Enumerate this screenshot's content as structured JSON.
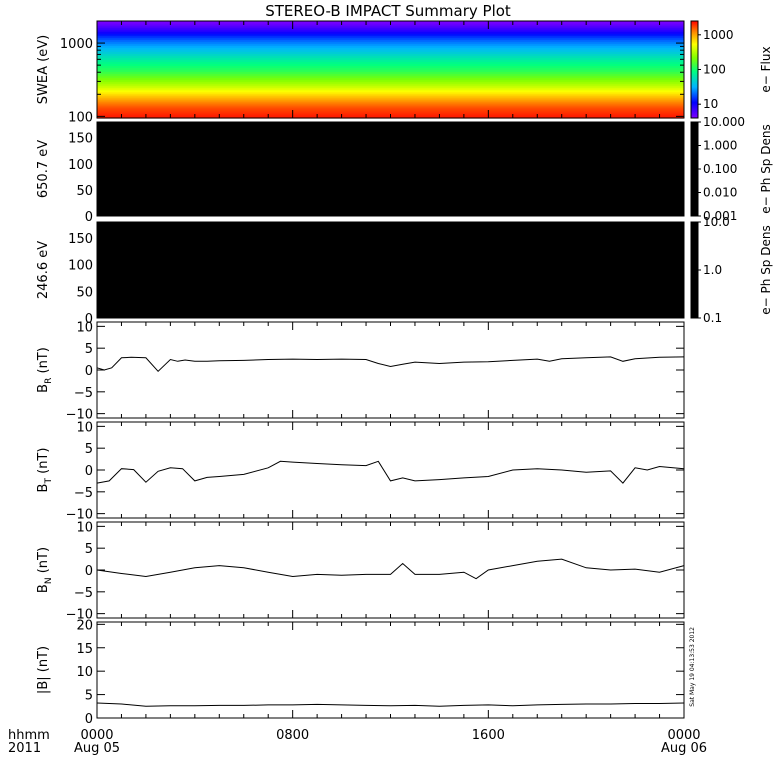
{
  "chart_data": {
    "title": "STEREO-B IMPACT Summary Plot",
    "type": "line",
    "time": {
      "x_start_hours": 0,
      "x_end_hours": 24,
      "tick_hours": [
        0,
        8,
        16,
        24
      ],
      "tick_labels": [
        "0000",
        "0800",
        "1600",
        "0000"
      ],
      "date_labels": [
        "Aug 05",
        "",
        "",
        "Aug 06"
      ],
      "corner_line1": "hhmm",
      "corner_line2": "2011"
    },
    "timestamp": "Sat May 19 04:13:53 2012",
    "colors": {
      "line": "#000000",
      "axis": "#000000",
      "background": "#ffffff",
      "empty_panel": "#000000"
    },
    "panels": [
      {
        "id": "swea",
        "kind": "spectrogram",
        "ylabel": "SWEA (eV)",
        "ylog": true,
        "ylim": [
          95,
          2000
        ],
        "yticks": [
          100,
          1000
        ],
        "ytick_labels": [
          "100",
          "1000"
        ],
        "energy_profile": [
          {
            "energy": 100,
            "flux": 2200
          },
          {
            "energy": 130,
            "flux": 1700
          },
          {
            "energy": 160,
            "flux": 1200
          },
          {
            "energy": 200,
            "flux": 700
          },
          {
            "energy": 260,
            "flux": 350
          },
          {
            "energy": 330,
            "flux": 200
          },
          {
            "energy": 420,
            "flux": 120
          },
          {
            "energy": 550,
            "flux": 80
          },
          {
            "energy": 700,
            "flux": 50
          },
          {
            "energy": 900,
            "flux": 30
          },
          {
            "energy": 1100,
            "flux": 20
          },
          {
            "energy": 1300,
            "flux": 13
          },
          {
            "energy": 1500,
            "flux": 8
          },
          {
            "energy": 1800,
            "flux": 5
          },
          {
            "energy": 2000,
            "flux": 4
          }
        ],
        "colorbar": {
          "label": "e− Flux",
          "scale": "log",
          "min": 4,
          "max": 2500,
          "ticks": [
            10,
            100,
            1000
          ],
          "tick_labels": [
            "10",
            "100",
            "1000"
          ]
        }
      },
      {
        "id": "pad650",
        "kind": "empty",
        "ylabel": "650.7 eV",
        "ylim": [
          0,
          180
        ],
        "yticks": [
          0,
          50,
          100,
          150
        ],
        "ytick_labels": [
          "0",
          "50",
          "100",
          "150"
        ],
        "colorbar": {
          "label": "e− Ph Sp Dens",
          "scale": "log",
          "min": 0.001,
          "max": 10,
          "ticks": [
            0.001,
            0.01,
            0.1,
            1,
            10
          ],
          "tick_labels": [
            "0.001",
            "0.010",
            "0.100",
            "1.000",
            "10.000"
          ]
        }
      },
      {
        "id": "pad246",
        "kind": "empty",
        "ylabel": "246.6 eV",
        "ylim": [
          0,
          180
        ],
        "yticks": [
          0,
          50,
          100,
          150
        ],
        "ytick_labels": [
          "0",
          "50",
          "100",
          "150"
        ],
        "colorbar": {
          "label": "e− Ph Sp Dens",
          "scale": "log",
          "min": 0.1,
          "max": 10,
          "ticks": [
            0.1,
            1,
            10
          ],
          "tick_labels": [
            "0.1",
            "1.0",
            "10.0"
          ]
        }
      },
      {
        "id": "br",
        "kind": "line",
        "ylabel": "B",
        "ylabel_sub": "R",
        "ylabel_unit": "(nT)",
        "ylim": [
          -11,
          11
        ],
        "yticks": [
          -10,
          -5,
          0,
          5,
          10
        ],
        "ytick_labels": [
          "−10",
          "−5",
          "0",
          "5",
          "10"
        ],
        "x": [
          0,
          0.3,
          0.6,
          1.0,
          1.4,
          2.0,
          2.5,
          3.0,
          3.3,
          3.6,
          4.0,
          4.5,
          5,
          6,
          7,
          8,
          9,
          10,
          11,
          11.5,
          12,
          12.5,
          13,
          14,
          15,
          16,
          17,
          18,
          18.5,
          19,
          20,
          21,
          21.5,
          22,
          23,
          24
        ],
        "y": [
          0.5,
          0,
          0.5,
          2.8,
          2.9,
          2.8,
          -0.3,
          2.4,
          2.0,
          2.3,
          2.0,
          2.0,
          2.1,
          2.2,
          2.4,
          2.5,
          2.4,
          2.5,
          2.4,
          1.5,
          0.8,
          1.3,
          1.8,
          1.5,
          1.8,
          1.9,
          2.2,
          2.5,
          2.0,
          2.6,
          2.8,
          3.0,
          2.0,
          2.6,
          2.9,
          3.0
        ]
      },
      {
        "id": "bt",
        "kind": "line",
        "ylabel": "B",
        "ylabel_sub": "T",
        "ylabel_unit": "(nT)",
        "ylim": [
          -11,
          11
        ],
        "yticks": [
          -10,
          -5,
          0,
          5,
          10
        ],
        "ytick_labels": [
          "−10",
          "−5",
          "0",
          "5",
          "10"
        ],
        "x": [
          0,
          0.5,
          1.0,
          1.5,
          2.0,
          2.5,
          3.0,
          3.5,
          4.0,
          4.5,
          5,
          6,
          7,
          7.5,
          8,
          9,
          10,
          11,
          11.5,
          12,
          12.5,
          13,
          14,
          15,
          16,
          17,
          18,
          19,
          20,
          21,
          21.5,
          22,
          22.5,
          23,
          24
        ],
        "y": [
          -3.0,
          -2.5,
          0.3,
          0.1,
          -2.8,
          -0.3,
          0.5,
          0.3,
          -2.5,
          -1.7,
          -1.5,
          -1.0,
          0.5,
          2.0,
          1.8,
          1.5,
          1.2,
          1.0,
          2.0,
          -2.5,
          -1.8,
          -2.5,
          -2.2,
          -1.8,
          -1.5,
          0,
          0.3,
          0,
          -0.5,
          -0.2,
          -3.0,
          0.5,
          0,
          0.8,
          0.3
        ]
      },
      {
        "id": "bn",
        "kind": "line",
        "ylabel": "B",
        "ylabel_sub": "N",
        "ylabel_unit": "(nT)",
        "ylim": [
          -11,
          11
        ],
        "yticks": [
          -10,
          -5,
          0,
          5,
          10
        ],
        "ytick_labels": [
          "−10",
          "−5",
          "0",
          "5",
          "10"
        ],
        "x": [
          0,
          1,
          2,
          3,
          4,
          5,
          6,
          7,
          8,
          9,
          10,
          11,
          12,
          12.5,
          13,
          14,
          15,
          15.5,
          16,
          17,
          18,
          19,
          20,
          21,
          22,
          23,
          24
        ],
        "y": [
          0,
          -0.8,
          -1.5,
          -0.5,
          0.5,
          1.0,
          0.5,
          -0.5,
          -1.5,
          -1.0,
          -1.2,
          -1.0,
          -1.0,
          1.5,
          -1.0,
          -1.0,
          -0.5,
          -2.0,
          0,
          1.0,
          2.0,
          2.5,
          0.5,
          0,
          0.2,
          -0.5,
          1.0
        ]
      },
      {
        "id": "bmag",
        "kind": "line",
        "ylabel": "|B| (nT)",
        "ylim": [
          0,
          20.5
        ],
        "yticks": [
          0,
          5,
          10,
          15,
          20
        ],
        "ytick_labels": [
          "0",
          "5",
          "10",
          "15",
          "20"
        ],
        "x": [
          0,
          1,
          2,
          3,
          4,
          5,
          6,
          7,
          8,
          9,
          10,
          11,
          12,
          13,
          14,
          15,
          16,
          17,
          18,
          19,
          20,
          21,
          22,
          23,
          24
        ],
        "y": [
          3.2,
          3.0,
          2.5,
          2.6,
          2.6,
          2.7,
          2.7,
          2.8,
          2.8,
          2.9,
          2.8,
          2.7,
          2.6,
          2.7,
          2.5,
          2.7,
          2.8,
          2.6,
          2.8,
          2.9,
          3.0,
          3.0,
          3.1,
          3.1,
          3.2
        ]
      }
    ]
  }
}
